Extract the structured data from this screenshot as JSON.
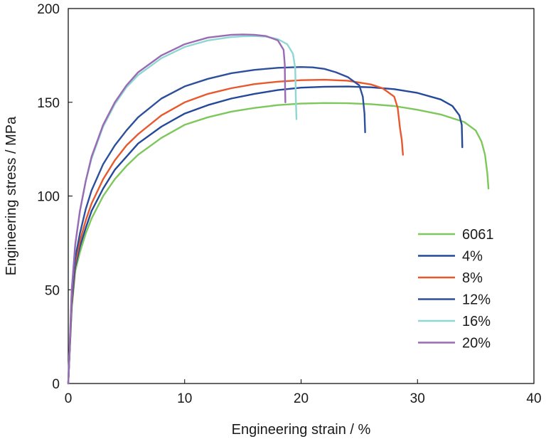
{
  "chart_data": {
    "type": "line",
    "title": "",
    "xlabel": "Engineering strain / %",
    "ylabel": "Engineering stress / MPa",
    "xlim": [
      0,
      40
    ],
    "ylim": [
      0,
      200
    ],
    "xticks": [
      0,
      10,
      20,
      30,
      40
    ],
    "yticks": [
      0,
      50,
      100,
      150,
      200
    ],
    "grid": false,
    "legend_position": "bottom-right",
    "series": [
      {
        "name": "6061",
        "color": "#7dc75b",
        "points": [
          [
            0,
            0
          ],
          [
            0.3,
            40
          ],
          [
            0.6,
            60
          ],
          [
            1,
            70
          ],
          [
            1.5,
            80
          ],
          [
            2,
            88
          ],
          [
            3,
            100
          ],
          [
            4,
            109
          ],
          [
            5,
            116
          ],
          [
            6,
            122
          ],
          [
            8,
            131
          ],
          [
            10,
            138
          ],
          [
            12,
            142
          ],
          [
            14,
            145
          ],
          [
            16,
            147
          ],
          [
            18,
            148.5
          ],
          [
            20,
            149.3
          ],
          [
            22,
            149.6
          ],
          [
            24,
            149.5
          ],
          [
            26,
            149
          ],
          [
            28,
            148
          ],
          [
            30,
            146
          ],
          [
            32,
            143.5
          ],
          [
            34,
            139.5
          ],
          [
            35,
            135
          ],
          [
            35.5,
            129
          ],
          [
            35.8,
            122
          ],
          [
            36.0,
            112
          ],
          [
            36.1,
            104
          ]
        ]
      },
      {
        "name": "4%",
        "color": "#24489a",
        "points": [
          [
            0,
            0
          ],
          [
            0.3,
            42
          ],
          [
            0.6,
            62
          ],
          [
            1,
            73
          ],
          [
            1.5,
            83
          ],
          [
            2,
            92
          ],
          [
            3,
            104
          ],
          [
            4,
            114
          ],
          [
            5,
            121
          ],
          [
            6,
            128
          ],
          [
            8,
            137
          ],
          [
            10,
            144
          ],
          [
            12,
            148.5
          ],
          [
            14,
            152
          ],
          [
            16,
            154.5
          ],
          [
            18,
            156.5
          ],
          [
            20,
            157.8
          ],
          [
            22,
            158.3
          ],
          [
            24,
            158.4
          ],
          [
            26,
            158
          ],
          [
            28,
            157
          ],
          [
            30,
            155
          ],
          [
            32,
            151.5
          ],
          [
            33,
            148
          ],
          [
            33.6,
            143
          ],
          [
            33.8,
            138
          ],
          [
            33.85,
            126
          ]
        ]
      },
      {
        "name": "8%",
        "color": "#e8582c",
        "points": [
          [
            0,
            0
          ],
          [
            0.3,
            44
          ],
          [
            0.6,
            64
          ],
          [
            1,
            76
          ],
          [
            1.5,
            87
          ],
          [
            2,
            96
          ],
          [
            3,
            109
          ],
          [
            4,
            119
          ],
          [
            5,
            127
          ],
          [
            6,
            133
          ],
          [
            8,
            143
          ],
          [
            10,
            150
          ],
          [
            12,
            154.5
          ],
          [
            14,
            157.5
          ],
          [
            16,
            159.7
          ],
          [
            18,
            161
          ],
          [
            20,
            161.8
          ],
          [
            22,
            162
          ],
          [
            24,
            161.5
          ],
          [
            26,
            159.5
          ],
          [
            27,
            157.5
          ],
          [
            28,
            153
          ],
          [
            28.3,
            147
          ],
          [
            28.5,
            136
          ],
          [
            28.65,
            130
          ],
          [
            28.75,
            122
          ]
        ]
      },
      {
        "name": "12%",
        "color": "#2d4f9c",
        "points": [
          [
            0,
            0
          ],
          [
            0.3,
            46
          ],
          [
            0.6,
            67
          ],
          [
            1,
            80
          ],
          [
            1.5,
            93
          ],
          [
            2,
            103
          ],
          [
            3,
            117
          ],
          [
            4,
            127
          ],
          [
            5,
            135
          ],
          [
            6,
            142
          ],
          [
            8,
            152
          ],
          [
            10,
            158.5
          ],
          [
            12,
            162.5
          ],
          [
            14,
            165.5
          ],
          [
            16,
            167.3
          ],
          [
            18,
            168.4
          ],
          [
            20,
            168.8
          ],
          [
            21,
            168.6
          ],
          [
            22,
            167.8
          ],
          [
            23,
            166
          ],
          [
            24,
            163.5
          ],
          [
            25,
            159
          ],
          [
            25.3,
            153
          ],
          [
            25.45,
            144
          ],
          [
            25.5,
            134
          ]
        ]
      },
      {
        "name": "16%",
        "color": "#8ed7d2",
        "points": [
          [
            0,
            0
          ],
          [
            0.3,
            50
          ],
          [
            0.6,
            74
          ],
          [
            1,
            92
          ],
          [
            1.5,
            108
          ],
          [
            2,
            120
          ],
          [
            3,
            137
          ],
          [
            4,
            149
          ],
          [
            5,
            158
          ],
          [
            6,
            164.5
          ],
          [
            8,
            173.5
          ],
          [
            10,
            179.5
          ],
          [
            12,
            183
          ],
          [
            14,
            184.8
          ],
          [
            15,
            185.2
          ],
          [
            16,
            185.3
          ],
          [
            17,
            185
          ],
          [
            18,
            183.7
          ],
          [
            18.8,
            181
          ],
          [
            19.3,
            176
          ],
          [
            19.5,
            168
          ],
          [
            19.55,
            152
          ],
          [
            19.6,
            141
          ]
        ]
      },
      {
        "name": "20%",
        "color": "#9a6bb5",
        "points": [
          [
            0,
            0
          ],
          [
            0.3,
            50
          ],
          [
            0.6,
            74
          ],
          [
            1,
            92
          ],
          [
            1.5,
            108
          ],
          [
            2,
            121
          ],
          [
            3,
            138
          ],
          [
            4,
            150
          ],
          [
            5,
            159
          ],
          [
            6,
            166
          ],
          [
            8,
            175
          ],
          [
            10,
            181
          ],
          [
            12,
            184.5
          ],
          [
            14,
            186
          ],
          [
            15,
            186.2
          ],
          [
            16,
            186
          ],
          [
            17,
            185.3
          ],
          [
            18,
            183
          ],
          [
            18.5,
            178
          ],
          [
            18.6,
            170
          ],
          [
            18.62,
            160
          ],
          [
            18.65,
            150
          ]
        ]
      }
    ]
  }
}
